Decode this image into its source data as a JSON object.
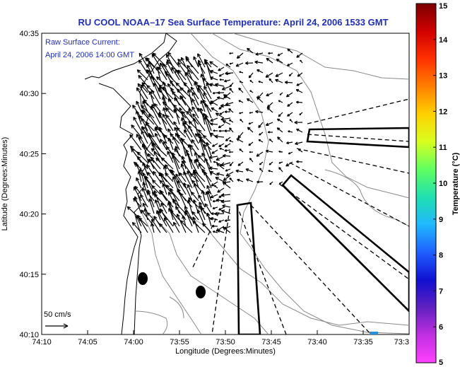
{
  "title": "RU COOL  NOAA–17  Sea Surface Temperature:  April 24, 2006 1533 GMT",
  "annotation": {
    "line1": "Raw Surface Current:",
    "line2": "April 24, 2006 14:00 GMT"
  },
  "scale": {
    "label": "50 cm/s"
  },
  "axes": {
    "xlabel": "Longitude (Degrees:Minutes)",
    "ylabel": "Latitude (Degrees:Minutes)",
    "xticks": [
      "74:10",
      "74:05",
      "74:00",
      "73:55",
      "73:50",
      "73:45",
      "73:40",
      "73:35",
      "73:3"
    ],
    "yticks": [
      "40:35",
      "40:30",
      "40:25",
      "40:20",
      "40:15",
      "40:10"
    ]
  },
  "colorbar": {
    "label": "Temperature (°C)",
    "ticks": [
      "15",
      "14",
      "13",
      "12",
      "11",
      "10",
      "9",
      "8",
      "7",
      "6",
      "5"
    ],
    "colors": [
      "#7a0000",
      "#d00000",
      "#ff3000",
      "#ff8000",
      "#ffd000",
      "#d8ff20",
      "#60ff60",
      "#20e0b0",
      "#20b8ff",
      "#2060ff",
      "#1010d0",
      "#6020c0",
      "#c030e0",
      "#ff40ff"
    ]
  }
}
